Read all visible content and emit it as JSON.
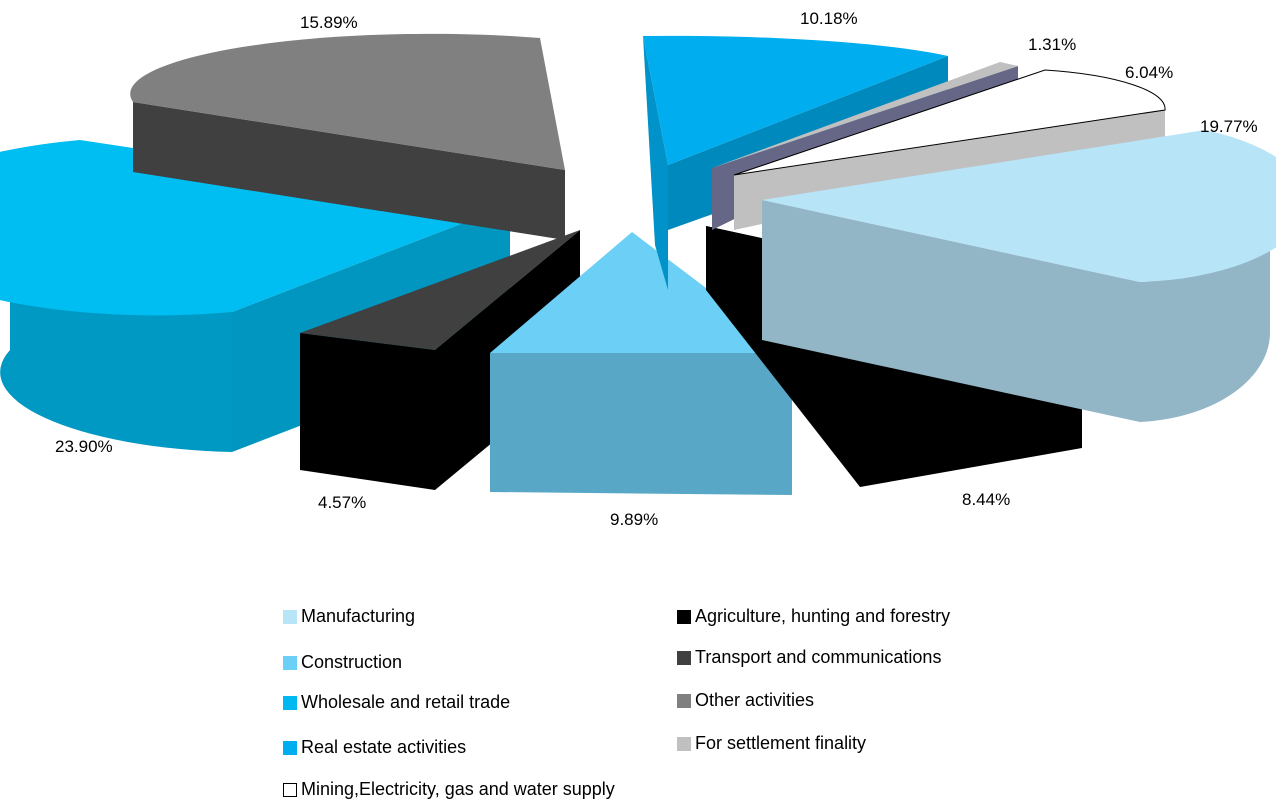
{
  "chart_data": {
    "type": "pie",
    "variant": "3d-exploded",
    "categories": [
      "Manufacturing",
      "Agriculture, hunting and forestry",
      "Construction",
      "Transport and communications",
      "Wholesale and retail trade",
      "Other activities",
      "Real estate activities",
      "For settlement finality",
      "Mining,Electricity, gas and water supply"
    ],
    "values": [
      19.77,
      8.44,
      9.89,
      4.57,
      23.9,
      15.89,
      10.18,
      1.31,
      6.04
    ],
    "data_labels": [
      "19.77%",
      "8.44%",
      "9.89%",
      "4.57%",
      "23.90%",
      "15.89%",
      "10.18%",
      "1.31%",
      "6.04%"
    ],
    "colors": {
      "Manufacturing": "#b8e4f8",
      "Agriculture, hunting and forestry": "#000000",
      "Construction": "#6ccff6",
      "Transport and communications": "#404040",
      "Wholesale and retail trade": "#00b9f0",
      "Other activities": "#808080",
      "Real estate activities": "#00aeef",
      "For settlement finality": "#c0c0c0",
      "Mining,Electricity, gas and water supply": "#ffffff",
      "slice_1_31": "#666686"
    },
    "legend": {
      "placement": "bottom",
      "items": [
        {
          "label": "Manufacturing",
          "color": "#b8e4f8"
        },
        {
          "label": "Agriculture, hunting and forestry",
          "color": "#000000"
        },
        {
          "label": "Construction",
          "color": "#6ccff6"
        },
        {
          "label": "Transport and communications",
          "color": "#404040"
        },
        {
          "label": "Wholesale and retail trade",
          "color": "#00b9f0"
        },
        {
          "label": "Other activities",
          "color": "#808080"
        },
        {
          "label": "Real estate activities",
          "color": "#00aeef"
        },
        {
          "label": "For settlement finality",
          "color": "#c0c0c0"
        },
        {
          "label": "Mining,Electricity, gas and water supply",
          "color": "#ffffff"
        }
      ]
    }
  }
}
